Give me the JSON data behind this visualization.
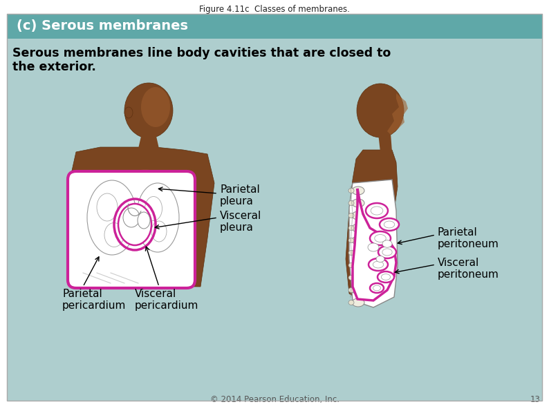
{
  "fig_title": "Figure 4.11c  Classes of membranes.",
  "section_header": "(c) Serous membranes",
  "body_text_line1": "Serous membranes line body cavities that are closed to",
  "body_text_line2": "the exterior.",
  "label_parietal_pleura": "Parietal\npleura",
  "label_visceral_pleura": "Visceral\npleura",
  "label_parietal_pericardium": "Parietal\npericardium",
  "label_visceral_pericardium": "Visceral\npericardium",
  "label_parietal_peritoneum": "Parietal\nperitoneum",
  "label_visceral_peritoneum": "Visceral\nperitoneum",
  "copyright": "© 2014 Pearson Education, Inc.",
  "page_number": "13",
  "bg_color": "#aecece",
  "header_bg_color": "#5fa8a8",
  "header_text_color": "#ffffff",
  "body_text_color": "#000000",
  "membrane_color": "#cc2299",
  "skin_dark": "#6b3a1f",
  "skin_mid": "#7d4a28",
  "skin_light": "#9a6040",
  "fig_title_fontsize": 8.5,
  "header_fontsize": 14,
  "body_fontsize": 12.5,
  "label_fontsize": 11
}
